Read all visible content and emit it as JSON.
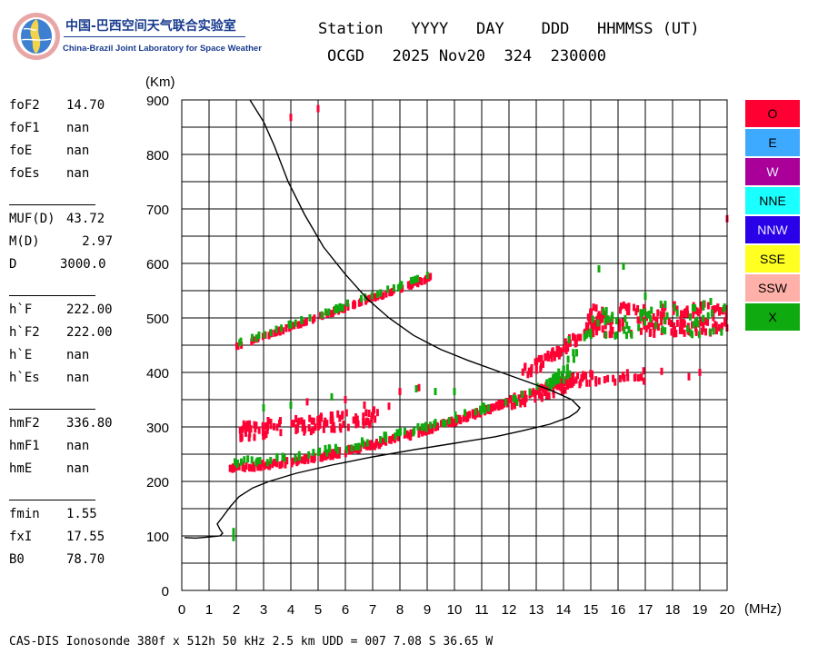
{
  "header": {
    "logo": {
      "title_cn": "中国-巴西空间天气联合实验室",
      "title_en": "China-Brazil Joint Laboratory for Space Weather"
    },
    "columns_label": "Station   YYYY   DAY    DDD   HHMMSS (UT)",
    "values_label": "OCGD   2025 Nov20  324  230000"
  },
  "params": [
    {
      "name": "foF2",
      "value": "14.70"
    },
    {
      "name": "foF1",
      "value": "nan"
    },
    {
      "name": "foE",
      "value": "nan"
    },
    {
      "name": "foEs",
      "value": "nan"
    },
    {
      "name": "MUF(D)",
      "value": "43.72"
    },
    {
      "name": "M(D)",
      "value": "2.97"
    },
    {
      "name": "D",
      "value": "3000.0"
    },
    {
      "name": "h`F",
      "value": "222.00"
    },
    {
      "name": "h`F2",
      "value": "222.00"
    },
    {
      "name": "h`E",
      "value": "nan"
    },
    {
      "name": "h`Es",
      "value": "nan"
    },
    {
      "name": "hmF2",
      "value": "336.80"
    },
    {
      "name": "hmF1",
      "value": "nan"
    },
    {
      "name": "hmE",
      "value": "nan"
    },
    {
      "name": "fmin",
      "value": "1.55"
    },
    {
      "name": "fxI",
      "value": "17.55"
    },
    {
      "name": "B0",
      "value": "78.70"
    }
  ],
  "legend": [
    {
      "label": "O",
      "color": "#ff0033"
    },
    {
      "label": "E",
      "color": "#3daaff"
    },
    {
      "label": "W",
      "color": "#aa0099"
    },
    {
      "label": "NNE",
      "color": "#1affff"
    },
    {
      "label": "NNW",
      "color": "#2a00e8"
    },
    {
      "label": "SSE",
      "color": "#ffff22"
    },
    {
      "label": "SSW",
      "color": "#ffb0a8"
    },
    {
      "label": "X",
      "color": "#0faa0f"
    }
  ],
  "footer": "CAS-DIS Ionosonde 380f x 512h 50 kHz 2.5 km UDD = 007 7.08 S 36.65 W",
  "chart_data": {
    "type": "scatter",
    "title": "",
    "xlabel": "(MHz)",
    "ylabel": "(Km)",
    "xlim": [
      0,
      20
    ],
    "ylim": [
      0,
      900
    ],
    "xticks": [
      0,
      1,
      2,
      3,
      4,
      5,
      6,
      7,
      8,
      9,
      10,
      11,
      12,
      13,
      14,
      15,
      16,
      17,
      18,
      19,
      20
    ],
    "yticks": [
      0,
      100,
      200,
      300,
      400,
      500,
      600,
      700,
      800,
      900
    ],
    "grid": true,
    "profile_curve": {
      "name": "electron density profile",
      "points": [
        [
          0.1,
          97
        ],
        [
          0.5,
          96
        ],
        [
          1.0,
          98
        ],
        [
          1.4,
          100
        ],
        [
          1.5,
          105
        ],
        [
          1.4,
          112
        ],
        [
          1.3,
          122
        ],
        [
          1.5,
          135
        ],
        [
          1.8,
          155
        ],
        [
          2.1,
          172
        ],
        [
          2.6,
          188
        ],
        [
          3.2,
          200
        ],
        [
          4.2,
          215
        ],
        [
          5.5,
          230
        ],
        [
          7.0,
          245
        ],
        [
          8.5,
          258
        ],
        [
          10.0,
          270
        ],
        [
          11.5,
          282
        ],
        [
          12.5,
          293
        ],
        [
          13.5,
          305
        ],
        [
          14.2,
          318
        ],
        [
          14.5,
          328
        ],
        [
          14.6,
          335
        ],
        [
          14.3,
          350
        ],
        [
          13.5,
          368
        ],
        [
          12.5,
          386
        ],
        [
          11.5,
          404
        ],
        [
          10.5,
          422
        ],
        [
          9.5,
          442
        ],
        [
          8.5,
          468
        ],
        [
          7.6,
          500
        ],
        [
          6.8,
          535
        ],
        [
          6.0,
          580
        ],
        [
          5.2,
          630
        ],
        [
          4.5,
          690
        ],
        [
          3.9,
          750
        ],
        [
          3.4,
          815
        ],
        [
          3.0,
          860
        ],
        [
          2.5,
          900
        ]
      ]
    },
    "series": [
      {
        "name": "O",
        "color": "#ff0033",
        "segments": [
          {
            "x": [
              1.7,
              14.2
            ],
            "y": [
              225,
              390
            ],
            "curve": 1.6,
            "width": 8,
            "count": 260
          },
          {
            "x": [
              2.0,
              9.2
            ],
            "y": [
              448,
              575
            ],
            "curve": 1.0,
            "width": 5,
            "count": 110
          },
          {
            "x": [
              2.1,
              7.2
            ],
            "y": [
              292,
              318
            ],
            "curve": 1.0,
            "width": 30,
            "count": 120
          },
          {
            "x": [
              12.5,
              15.4
            ],
            "y": [
              400,
              500
            ],
            "curve": 1.2,
            "width": 22,
            "count": 70
          },
          {
            "x": [
              14.8,
              20.0
            ],
            "y": [
              495,
              500
            ],
            "curve": 1.0,
            "width": 55,
            "count": 170
          },
          {
            "x": [
              13.8,
              17.0
            ],
            "y": [
              385,
              395
            ],
            "curve": 1.0,
            "width": 22,
            "count": 45
          },
          {
            "x": [
              11.8,
              14.2
            ],
            "y": [
              340,
              378
            ],
            "curve": 1.0,
            "width": 20,
            "count": 40
          }
        ],
        "points": [
          [
            4.0,
            868
          ],
          [
            5.0,
            884
          ],
          [
            20.0,
            682
          ],
          [
            19.0,
            400
          ],
          [
            18.6,
            392
          ],
          [
            17.6,
            402
          ],
          [
            8.0,
            365
          ],
          [
            8.7,
            372
          ],
          [
            6.7,
            340
          ],
          [
            7.6,
            338
          ],
          [
            6.0,
            350
          ],
          [
            4.6,
            346
          ]
        ]
      },
      {
        "name": "X",
        "color": "#0faa0f",
        "segments": [
          {
            "x": [
              1.8,
              14.5
            ],
            "y": [
              235,
              400
            ],
            "curve": 1.6,
            "width": 10,
            "count": 90
          },
          {
            "x": [
              2.0,
              9.2
            ],
            "y": [
              452,
              580
            ],
            "curve": 1.0,
            "width": 6,
            "count": 45
          },
          {
            "x": [
              13.5,
              15.0
            ],
            "y": [
              380,
              480
            ],
            "curve": 1.3,
            "width": 18,
            "count": 30
          },
          {
            "x": [
              15.0,
              20.0
            ],
            "y": [
              490,
              500
            ],
            "curve": 1.0,
            "width": 60,
            "count": 60
          }
        ],
        "points": [
          [
            1.9,
            97
          ],
          [
            1.9,
            108
          ],
          [
            8.6,
            370
          ],
          [
            9.3,
            365
          ],
          [
            10.0,
            365
          ],
          [
            3.0,
            335
          ],
          [
            4.0,
            340
          ],
          [
            5.5,
            355
          ],
          [
            12.3,
            345
          ],
          [
            13.5,
            372
          ],
          [
            19.4,
            530
          ],
          [
            15.3,
            590
          ],
          [
            16.2,
            595
          ],
          [
            17.0,
            540
          ],
          [
            14.2,
            460
          ]
        ]
      }
    ]
  }
}
